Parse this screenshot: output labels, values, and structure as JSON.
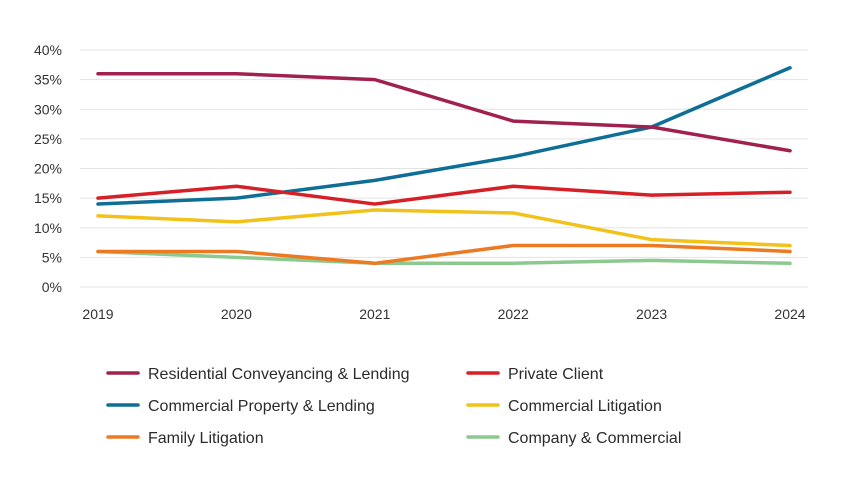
{
  "chart_data": {
    "type": "line",
    "categories": [
      "2019",
      "2020",
      "2021",
      "2022",
      "2023",
      "2024"
    ],
    "ylim": [
      0,
      40
    ],
    "yticks": [
      "0%",
      "5%",
      "10%",
      "15%",
      "20%",
      "25%",
      "30%",
      "35%",
      "40%"
    ],
    "ytick_values": [
      0,
      5,
      10,
      15,
      20,
      25,
      30,
      35,
      40
    ],
    "grid": "horizontal",
    "legend_position": "bottom",
    "series": [
      {
        "name": "Residential Conveyancing & Lending",
        "color": "#a0214f",
        "values": [
          36,
          36,
          35,
          28,
          27,
          23
        ]
      },
      {
        "name": "Private Client",
        "color": "#d62027",
        "values": [
          15,
          17,
          14,
          17,
          15.5,
          16
        ]
      },
      {
        "name": "Commercial Property & Lending",
        "color": "#0e6e95",
        "values": [
          14,
          15,
          18,
          22,
          27,
          37
        ]
      },
      {
        "name": "Commercial Litigation",
        "color": "#f2c21b",
        "values": [
          12,
          11,
          13,
          12.5,
          8,
          7
        ]
      },
      {
        "name": "Family Litigation",
        "color": "#ec7a22",
        "values": [
          6,
          6,
          4,
          7,
          7,
          6
        ]
      },
      {
        "name": "Company & Commercial",
        "color": "#8cc98f",
        "values": [
          6,
          5,
          4,
          4,
          4.5,
          4
        ]
      }
    ]
  }
}
